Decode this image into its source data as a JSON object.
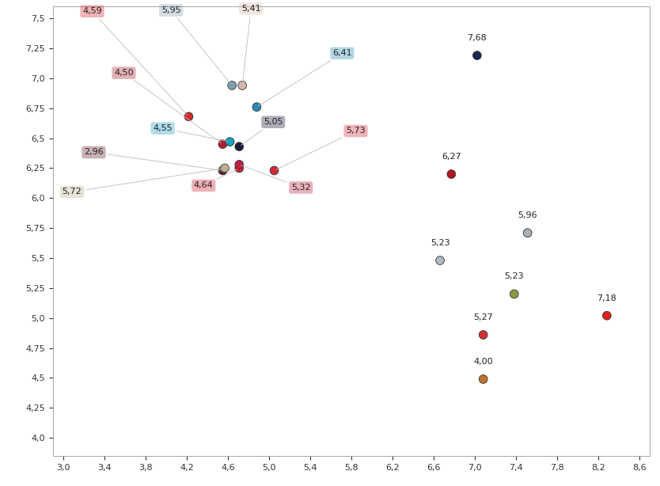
{
  "chart_data": {
    "type": "scatter",
    "x": [
      4.22,
      4.64,
      4.74,
      4.88,
      4.55,
      4.62,
      4.71,
      5.05,
      4.55,
      4.57,
      4.71,
      4.71,
      7.02,
      6.77,
      7.51,
      6.66,
      7.38,
      8.28,
      7.08,
      7.08
    ],
    "values": [
      6.68,
      6.94,
      6.94,
      6.76,
      6.45,
      6.47,
      6.43,
      6.23,
      6.23,
      6.25,
      6.25,
      6.28,
      7.19,
      6.2,
      5.71,
      5.48,
      5.2,
      5.02,
      4.86,
      4.49
    ],
    "point_values": [
      4.59,
      5.95,
      5.41,
      6.41,
      4.5,
      4.55,
      5.05,
      5.73,
      2.96,
      5.72,
      4.64,
      5.32,
      7.68,
      6.27,
      5.96,
      5.23,
      5.23,
      7.18,
      5.27,
      4.0
    ],
    "point_labels": [
      "4,59",
      "5,95",
      "5,41",
      "6,41",
      "4,50",
      "4,55",
      "5,05",
      "5,73",
      "2,96",
      "5,72",
      "4,64",
      "5,32",
      "7,68",
      "6,27",
      "5,96",
      "5,23",
      "5,23",
      "7,18",
      "5,27",
      "4,00"
    ],
    "colors": [
      "#d42a2a",
      "#7f9fb0",
      "#d8b8a8",
      "#2a8ab0",
      "#b02030",
      "#1aa0c0",
      "#1a1a3a",
      "#d02838",
      "#6a2030",
      "#b8b090",
      "#d02030",
      "#c02040",
      "#1a2a4a",
      "#b01820",
      "#a8b0b8",
      "#b0b8c0",
      "#8a9a40",
      "#e02020",
      "#d03030",
      "#c07030"
    ],
    "data_labels": true,
    "xlim": [
      2.9,
      8.7
    ],
    "ylim": [
      3.85,
      7.6
    ],
    "xticks": [
      {
        "value": 3.0,
        "label": "3,0"
      },
      {
        "value": 3.4,
        "label": "3,4"
      },
      {
        "value": 3.8,
        "label": "3,8"
      },
      {
        "value": 4.2,
        "label": "4,2"
      },
      {
        "value": 4.6,
        "label": "4,6"
      },
      {
        "value": 5.0,
        "label": "5,0"
      },
      {
        "value": 5.4,
        "label": "5,4"
      },
      {
        "value": 5.8,
        "label": "5,8"
      },
      {
        "value": 6.2,
        "label": "6,2"
      },
      {
        "value": 6.6,
        "label": "6,6"
      },
      {
        "value": 7.0,
        "label": "7,0"
      },
      {
        "value": 7.4,
        "label": "7,4"
      },
      {
        "value": 7.8,
        "label": "7,8"
      },
      {
        "value": 8.2,
        "label": "8,2"
      },
      {
        "value": 8.6,
        "label": "8,6"
      }
    ],
    "yticks": [
      {
        "value": 4.0,
        "label": "4,0"
      },
      {
        "value": 4.25,
        "label": "4,25"
      },
      {
        "value": 4.5,
        "label": "4,5"
      },
      {
        "value": 4.75,
        "label": "4,75"
      },
      {
        "value": 5.0,
        "label": "5,0"
      },
      {
        "value": 5.25,
        "label": "5,25"
      },
      {
        "value": 5.5,
        "label": "5,5"
      },
      {
        "value": 5.75,
        "label": "5,75"
      },
      {
        "value": 6.0,
        "label": "6,0"
      },
      {
        "value": 6.25,
        "label": "6,25"
      },
      {
        "value": 6.5,
        "label": "6,5"
      },
      {
        "value": 6.75,
        "label": "6,75"
      },
      {
        "value": 7.0,
        "label": "7,0"
      },
      {
        "value": 7.25,
        "label": "7,25"
      },
      {
        "value": 7.5,
        "label": "7,5"
      }
    ],
    "grid": false
  }
}
